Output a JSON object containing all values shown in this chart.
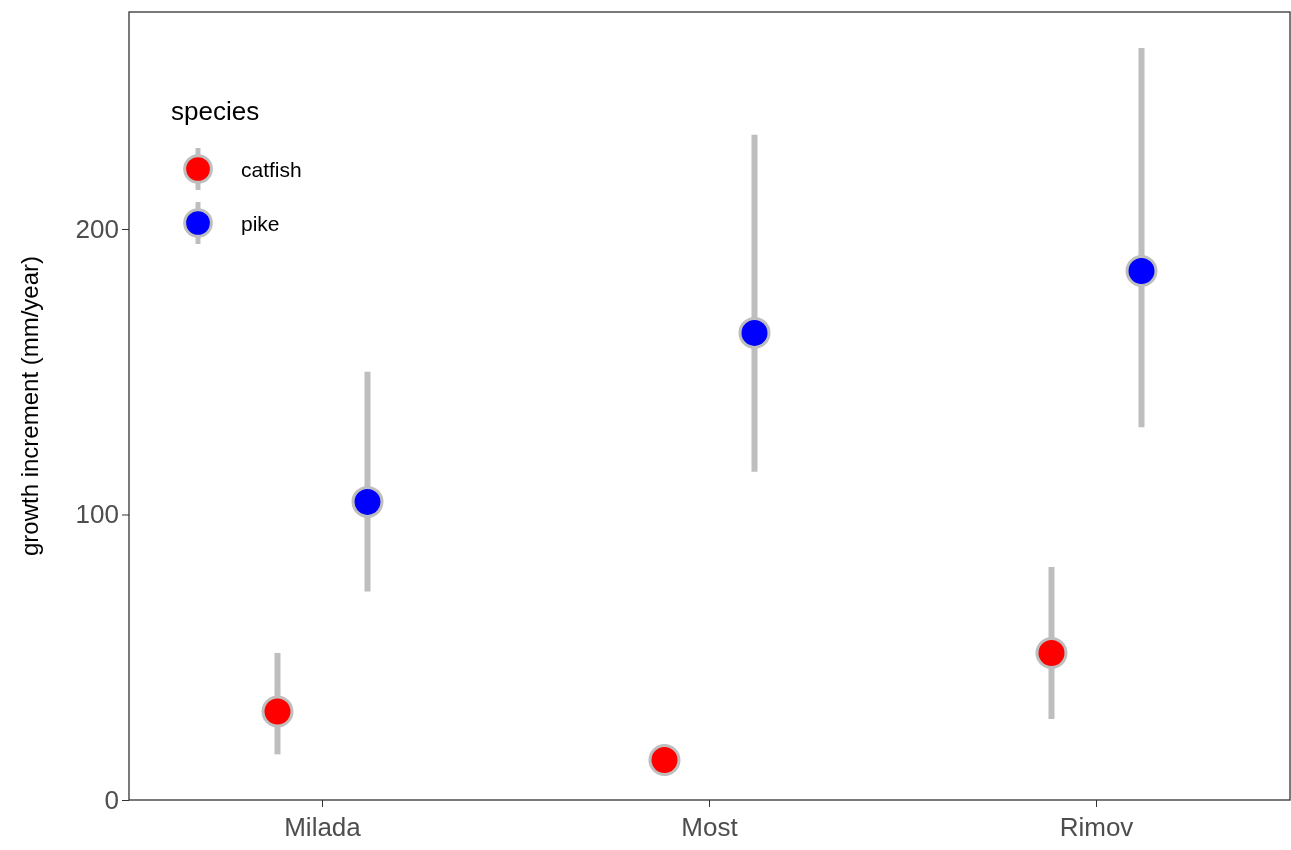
{
  "chart_data": {
    "type": "scatter",
    "ylabel": "growth increment (mm/year)",
    "legend_title": "species",
    "categories": [
      "Milada",
      "Most",
      "Rimov"
    ],
    "series": [
      {
        "name": "catfish",
        "color": "#ff0000",
        "values": [
          31,
          14,
          51.5
        ],
        "errors": [
          [
            16,
            51.5
          ],
          null,
          [
            28.4,
            81.6
          ]
        ]
      },
      {
        "name": "pike",
        "color": "#0000ff",
        "values": [
          104.4,
          163.6,
          185.3
        ],
        "errors": [
          [
            73,
            150
          ],
          [
            115,
            233
          ],
          [
            130.6,
            263.4
          ]
        ]
      }
    ],
    "ylim": [
      0,
      276
    ],
    "yticks": [
      0,
      100,
      200
    ],
    "grid": false,
    "legend": "top left",
    "marker": "circle"
  }
}
